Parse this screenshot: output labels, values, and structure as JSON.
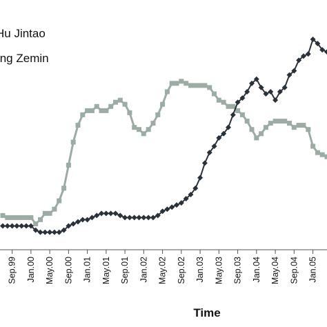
{
  "chart_data": {
    "type": "line",
    "title": "",
    "xlabel": "Time",
    "ylabel": "",
    "x_ticks": [
      "Sep.99",
      "Jan.00",
      "May.00",
      "Sep.00",
      "Jan.01",
      "May.01",
      "Sep.01",
      "Jan.02",
      "May.02",
      "Sep.02",
      "Jan.03",
      "May.03",
      "Sep.03",
      "Jan.04",
      "May.04",
      "Sep.04",
      "Jan.05"
    ],
    "x_start": "1999-07",
    "x_end": "2005-04",
    "ylim": [
      0,
      100
    ],
    "grid": false,
    "legend": "top-left",
    "series": [
      {
        "name": "Hu Jintao",
        "color": "#2b3139",
        "marker": "diamond",
        "values": [
          [
            "1999-07",
            11
          ],
          [
            "1999-08",
            11
          ],
          [
            "1999-09",
            11
          ],
          [
            "1999-10",
            11
          ],
          [
            "1999-11",
            11
          ],
          [
            "1999-12",
            11
          ],
          [
            "2000-01",
            11
          ],
          [
            "2000-02",
            9
          ],
          [
            "2000-03",
            8
          ],
          [
            "2000-04",
            8
          ],
          [
            "2000-05",
            8
          ],
          [
            "2000-06",
            8
          ],
          [
            "2000-07",
            8
          ],
          [
            "2000-08",
            9
          ],
          [
            "2000-09",
            11
          ],
          [
            "2000-10",
            12
          ],
          [
            "2000-11",
            13
          ],
          [
            "2000-12",
            14
          ],
          [
            "2001-01",
            14
          ],
          [
            "2001-02",
            15
          ],
          [
            "2001-03",
            16
          ],
          [
            "2001-04",
            17
          ],
          [
            "2001-05",
            17
          ],
          [
            "2001-06",
            17
          ],
          [
            "2001-07",
            17
          ],
          [
            "2001-08",
            16
          ],
          [
            "2001-09",
            15
          ],
          [
            "2001-10",
            15
          ],
          [
            "2001-11",
            15
          ],
          [
            "2001-12",
            15
          ],
          [
            "2002-01",
            15
          ],
          [
            "2002-02",
            15
          ],
          [
            "2002-03",
            15
          ],
          [
            "2002-04",
            16
          ],
          [
            "2002-05",
            18
          ],
          [
            "2002-06",
            19
          ],
          [
            "2002-07",
            20
          ],
          [
            "2002-08",
            21
          ],
          [
            "2002-09",
            22
          ],
          [
            "2002-10",
            24
          ],
          [
            "2002-11",
            26
          ],
          [
            "2002-12",
            29
          ],
          [
            "2003-01",
            34
          ],
          [
            "2003-02",
            41
          ],
          [
            "2003-03",
            46
          ],
          [
            "2003-04",
            49
          ],
          [
            "2003-05",
            53
          ],
          [
            "2003-06",
            55
          ],
          [
            "2003-07",
            58
          ],
          [
            "2003-08",
            64
          ],
          [
            "2003-09",
            70
          ],
          [
            "2003-10",
            72
          ],
          [
            "2003-11",
            75
          ],
          [
            "2003-12",
            79
          ],
          [
            "2004-01",
            81
          ],
          [
            "2004-02",
            77
          ],
          [
            "2004-03",
            74
          ],
          [
            "2004-04",
            75
          ],
          [
            "2004-05",
            71
          ],
          [
            "2004-06",
            75
          ],
          [
            "2004-07",
            77
          ],
          [
            "2004-08",
            83
          ],
          [
            "2004-09",
            85
          ],
          [
            "2004-10",
            90
          ],
          [
            "2004-11",
            92
          ],
          [
            "2004-12",
            93
          ],
          [
            "2005-01",
            100
          ],
          [
            "2005-02",
            98
          ],
          [
            "2005-03",
            95
          ],
          [
            "2005-04",
            94
          ]
        ]
      },
      {
        "name": "Jiang Zemin",
        "color": "#9aaca3",
        "marker": "square",
        "values": [
          [
            "1999-07",
            16
          ],
          [
            "1999-08",
            15
          ],
          [
            "1999-09",
            15
          ],
          [
            "1999-10",
            15
          ],
          [
            "1999-11",
            15
          ],
          [
            "1999-12",
            15
          ],
          [
            "2000-01",
            15
          ],
          [
            "2000-02",
            12
          ],
          [
            "2000-03",
            14
          ],
          [
            "2000-04",
            17
          ],
          [
            "2000-05",
            17
          ],
          [
            "2000-06",
            19
          ],
          [
            "2000-07",
            23
          ],
          [
            "2000-08",
            29
          ],
          [
            "2000-09",
            40
          ],
          [
            "2000-10",
            51
          ],
          [
            "2000-11",
            59
          ],
          [
            "2000-12",
            64
          ],
          [
            "2001-01",
            66
          ],
          [
            "2001-02",
            66
          ],
          [
            "2001-03",
            68
          ],
          [
            "2001-04",
            66
          ],
          [
            "2001-05",
            66
          ],
          [
            "2001-06",
            68
          ],
          [
            "2001-07",
            70
          ],
          [
            "2001-08",
            71
          ],
          [
            "2001-09",
            69
          ],
          [
            "2001-10",
            65
          ],
          [
            "2001-11",
            58
          ],
          [
            "2001-12",
            57
          ],
          [
            "2002-01",
            55
          ],
          [
            "2002-02",
            57
          ],
          [
            "2002-03",
            60
          ],
          [
            "2002-04",
            64
          ],
          [
            "2002-05",
            69
          ],
          [
            "2002-06",
            75
          ],
          [
            "2002-07",
            79
          ],
          [
            "2002-08",
            79
          ],
          [
            "2002-09",
            80
          ],
          [
            "2002-10",
            79
          ],
          [
            "2002-11",
            78
          ],
          [
            "2002-12",
            78
          ],
          [
            "2003-01",
            78
          ],
          [
            "2003-02",
            78
          ],
          [
            "2003-03",
            77
          ],
          [
            "2003-04",
            74
          ],
          [
            "2003-05",
            71
          ],
          [
            "2003-06",
            70
          ],
          [
            "2003-07",
            68
          ],
          [
            "2003-08",
            68
          ],
          [
            "2003-09",
            66
          ],
          [
            "2003-10",
            64
          ],
          [
            "2003-11",
            61
          ],
          [
            "2003-12",
            57
          ],
          [
            "2004-01",
            53
          ],
          [
            "2004-02",
            55
          ],
          [
            "2004-03",
            58
          ],
          [
            "2004-04",
            60
          ],
          [
            "2004-05",
            61
          ],
          [
            "2004-06",
            61
          ],
          [
            "2004-07",
            61
          ],
          [
            "2004-08",
            60
          ],
          [
            "2004-09",
            58
          ],
          [
            "2004-10",
            59
          ],
          [
            "2004-11",
            59
          ],
          [
            "2004-12",
            57
          ],
          [
            "2005-01",
            49
          ],
          [
            "2005-02",
            46
          ],
          [
            "2005-03",
            45
          ],
          [
            "2005-04",
            44
          ]
        ]
      }
    ]
  }
}
